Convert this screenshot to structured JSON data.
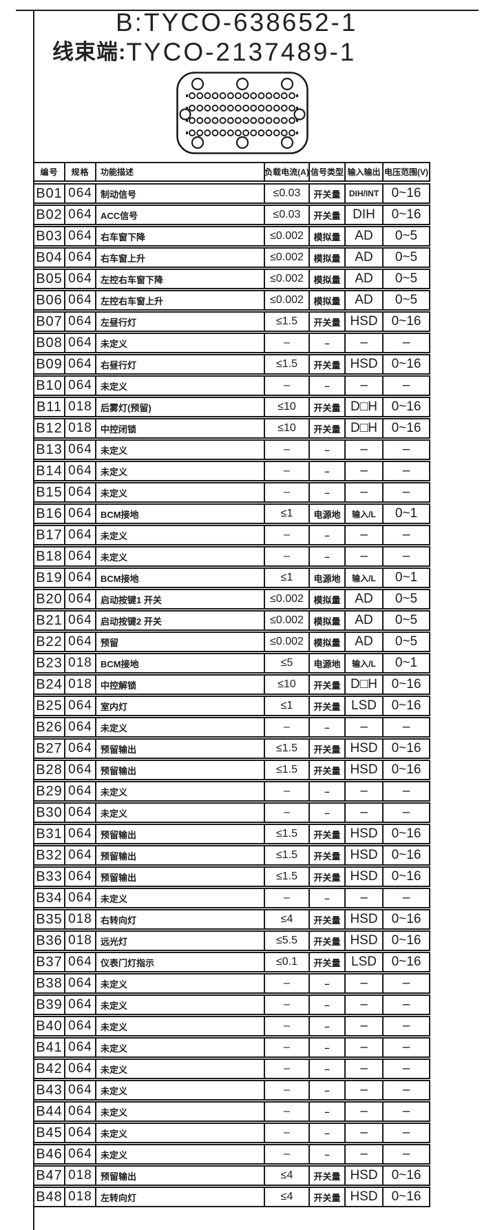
{
  "colors": {
    "ink": "#1b1b1b",
    "background": "#ffffff"
  },
  "title": {
    "line1": "B:TYCO-638652-1",
    "line2_prefix": "线束端:",
    "line2_part": "TYCO-2137489-1"
  },
  "connector": {
    "description": "48-pin-connector-face-diagram"
  },
  "table": {
    "headers": [
      "编号",
      "规格",
      "功能描述",
      "负载电流(A)",
      "信号类型",
      "输入输出",
      "电压范围(V)"
    ],
    "rows": [
      [
        "B01",
        "064",
        "制动信号",
        "≤0.03",
        "开关量",
        "DIH/INT",
        "0~16"
      ],
      [
        "B02",
        "064",
        "ACC信号",
        "≤0.03",
        "开关量",
        "DIH",
        "0~16"
      ],
      [
        "B03",
        "064",
        "右车窗下降",
        "≤0.002",
        "模拟量",
        "AD",
        "0~5"
      ],
      [
        "B04",
        "064",
        "右车窗上升",
        "≤0.002",
        "模拟量",
        "AD",
        "0~5"
      ],
      [
        "B05",
        "064",
        "左控右车窗下降",
        "≤0.002",
        "模拟量",
        "AD",
        "0~5"
      ],
      [
        "B06",
        "064",
        "左控右车窗上升",
        "≤0.002",
        "模拟量",
        "AD",
        "0~5"
      ],
      [
        "B07",
        "064",
        "左昼行灯",
        "≤1.5",
        "开关量",
        "HSD",
        "0~16"
      ],
      [
        "B08",
        "064",
        "未定义",
        "–",
        "–",
        "–",
        "–"
      ],
      [
        "B09",
        "064",
        "右昼行灯",
        "≤1.5",
        "开关量",
        "HSD",
        "0~16"
      ],
      [
        "B10",
        "064",
        "未定义",
        "–",
        "–",
        "–",
        "–"
      ],
      [
        "B11",
        "018",
        "后雾灯(预留)",
        "≤10",
        "开关量",
        "D□H",
        "0~16"
      ],
      [
        "B12",
        "018",
        "中控闭锁",
        "≤10",
        "开关量",
        "D□H",
        "0~16"
      ],
      [
        "B13",
        "064",
        "未定义",
        "–",
        "–",
        "–",
        "–"
      ],
      [
        "B14",
        "064",
        "未定义",
        "–",
        "–",
        "–",
        "–"
      ],
      [
        "B15",
        "064",
        "未定义",
        "–",
        "–",
        "–",
        "–"
      ],
      [
        "B16",
        "064",
        "BCM接地",
        "≤1",
        "电源地",
        "输入/L",
        "0~1"
      ],
      [
        "B17",
        "064",
        "未定义",
        "–",
        "–",
        "–",
        "–"
      ],
      [
        "B18",
        "064",
        "未定义",
        "–",
        "–",
        "–",
        "–"
      ],
      [
        "B19",
        "064",
        "BCM接地",
        "≤1",
        "电源地",
        "输入/L",
        "0~1"
      ],
      [
        "B20",
        "064",
        "启动按键1 开关",
        "≤0.002",
        "模拟量",
        "AD",
        "0~5"
      ],
      [
        "B21",
        "064",
        "启动按键2 开关",
        "≤0.002",
        "模拟量",
        "AD",
        "0~5"
      ],
      [
        "B22",
        "064",
        "预留",
        "≤0.002",
        "模拟量",
        "AD",
        "0~5"
      ],
      [
        "B23",
        "018",
        "BCM接地",
        "≤5",
        "电源地",
        "输入/L",
        "0~1"
      ],
      [
        "B24",
        "018",
        "中控解锁",
        "≤10",
        "开关量",
        "D□H",
        "0~16"
      ],
      [
        "B25",
        "064",
        "室内灯",
        "≤1",
        "开关量",
        "LSD",
        "0~16"
      ],
      [
        "B26",
        "064",
        "未定义",
        "–",
        "–",
        "–",
        "–"
      ],
      [
        "B27",
        "064",
        "预留输出",
        "≤1.5",
        "开关量",
        "HSD",
        "0~16"
      ],
      [
        "B28",
        "064",
        "预留输出",
        "≤1.5",
        "开关量",
        "HSD",
        "0~16"
      ],
      [
        "B29",
        "064",
        "未定义",
        "–",
        "–",
        "–",
        "–"
      ],
      [
        "B30",
        "064",
        "未定义",
        "–",
        "–",
        "–",
        "–"
      ],
      [
        "B31",
        "064",
        "预留输出",
        "≤1.5",
        "开关量",
        "HSD",
        "0~16"
      ],
      [
        "B32",
        "064",
        "预留输出",
        "≤1.5",
        "开关量",
        "HSD",
        "0~16"
      ],
      [
        "B33",
        "064",
        "预留输出",
        "≤1.5",
        "开关量",
        "HSD",
        "0~16"
      ],
      [
        "B34",
        "064",
        "未定义",
        "–",
        "–",
        "–",
        "–"
      ],
      [
        "B35",
        "018",
        "右转向灯",
        "≤4",
        "开关量",
        "HSD",
        "0~16"
      ],
      [
        "B36",
        "018",
        "远光灯",
        "≤5.5",
        "开关量",
        "HSD",
        "0~16"
      ],
      [
        "B37",
        "064",
        "仪表门灯指示",
        "≤0.1",
        "开关量",
        "LSD",
        "0~16"
      ],
      [
        "B38",
        "064",
        "未定义",
        "–",
        "–",
        "–",
        "–"
      ],
      [
        "B39",
        "064",
        "未定义",
        "–",
        "–",
        "–",
        "–"
      ],
      [
        "B40",
        "064",
        "未定义",
        "–",
        "–",
        "–",
        "–"
      ],
      [
        "B41",
        "064",
        "未定义",
        "–",
        "–",
        "–",
        "–"
      ],
      [
        "B42",
        "064",
        "未定义",
        "–",
        "–",
        "–",
        "–"
      ],
      [
        "B43",
        "064",
        "未定义",
        "–",
        "–",
        "–",
        "–"
      ],
      [
        "B44",
        "064",
        "未定义",
        "–",
        "–",
        "–",
        "–"
      ],
      [
        "B45",
        "064",
        "未定义",
        "–",
        "–",
        "–",
        "–"
      ],
      [
        "B46",
        "064",
        "未定义",
        "–",
        "–",
        "–",
        "–"
      ],
      [
        "B47",
        "018",
        "预留输出",
        "≤4",
        "开关量",
        "HSD",
        "0~16"
      ],
      [
        "B48",
        "018",
        "左转向灯",
        "≤4",
        "开关量",
        "HSD",
        "0~16"
      ]
    ]
  }
}
